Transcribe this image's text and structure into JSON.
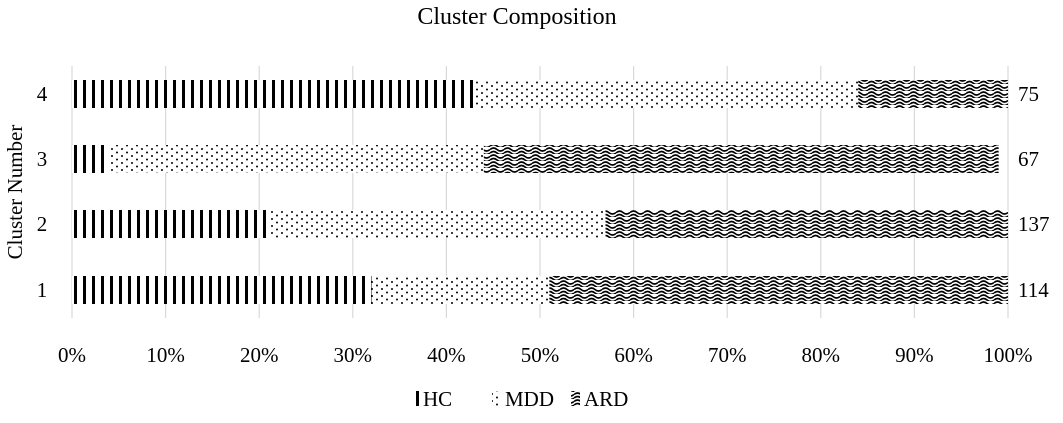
{
  "chart_data": {
    "type": "bar",
    "orientation": "horizontal",
    "stacked": "percent",
    "title": "Cluster Composition",
    "xlabel": "",
    "ylabel": "Cluster Number",
    "xlim": [
      0,
      100
    ],
    "xticks": [
      "0%",
      "10%",
      "20%",
      "30%",
      "40%",
      "50%",
      "60%",
      "70%",
      "80%",
      "90%",
      "100%"
    ],
    "grid": "vertical",
    "legend_position": "bottom",
    "categories": [
      "1",
      "2",
      "3",
      "4"
    ],
    "totals": [
      "114",
      "137",
      "67",
      "75"
    ],
    "series": [
      {
        "name": "HC",
        "pattern": "vertical-lines",
        "values": [
          32,
          21,
          4,
          43
        ]
      },
      {
        "name": "MDD",
        "pattern": "dots",
        "values": [
          19,
          36,
          40,
          41
        ]
      },
      {
        "name": "ARD",
        "pattern": "waves",
        "values": [
          49,
          43,
          55,
          16
        ]
      }
    ],
    "colors": {
      "ink": "#000000",
      "gridline": "#d9d9d9",
      "background": "#ffffff"
    }
  }
}
